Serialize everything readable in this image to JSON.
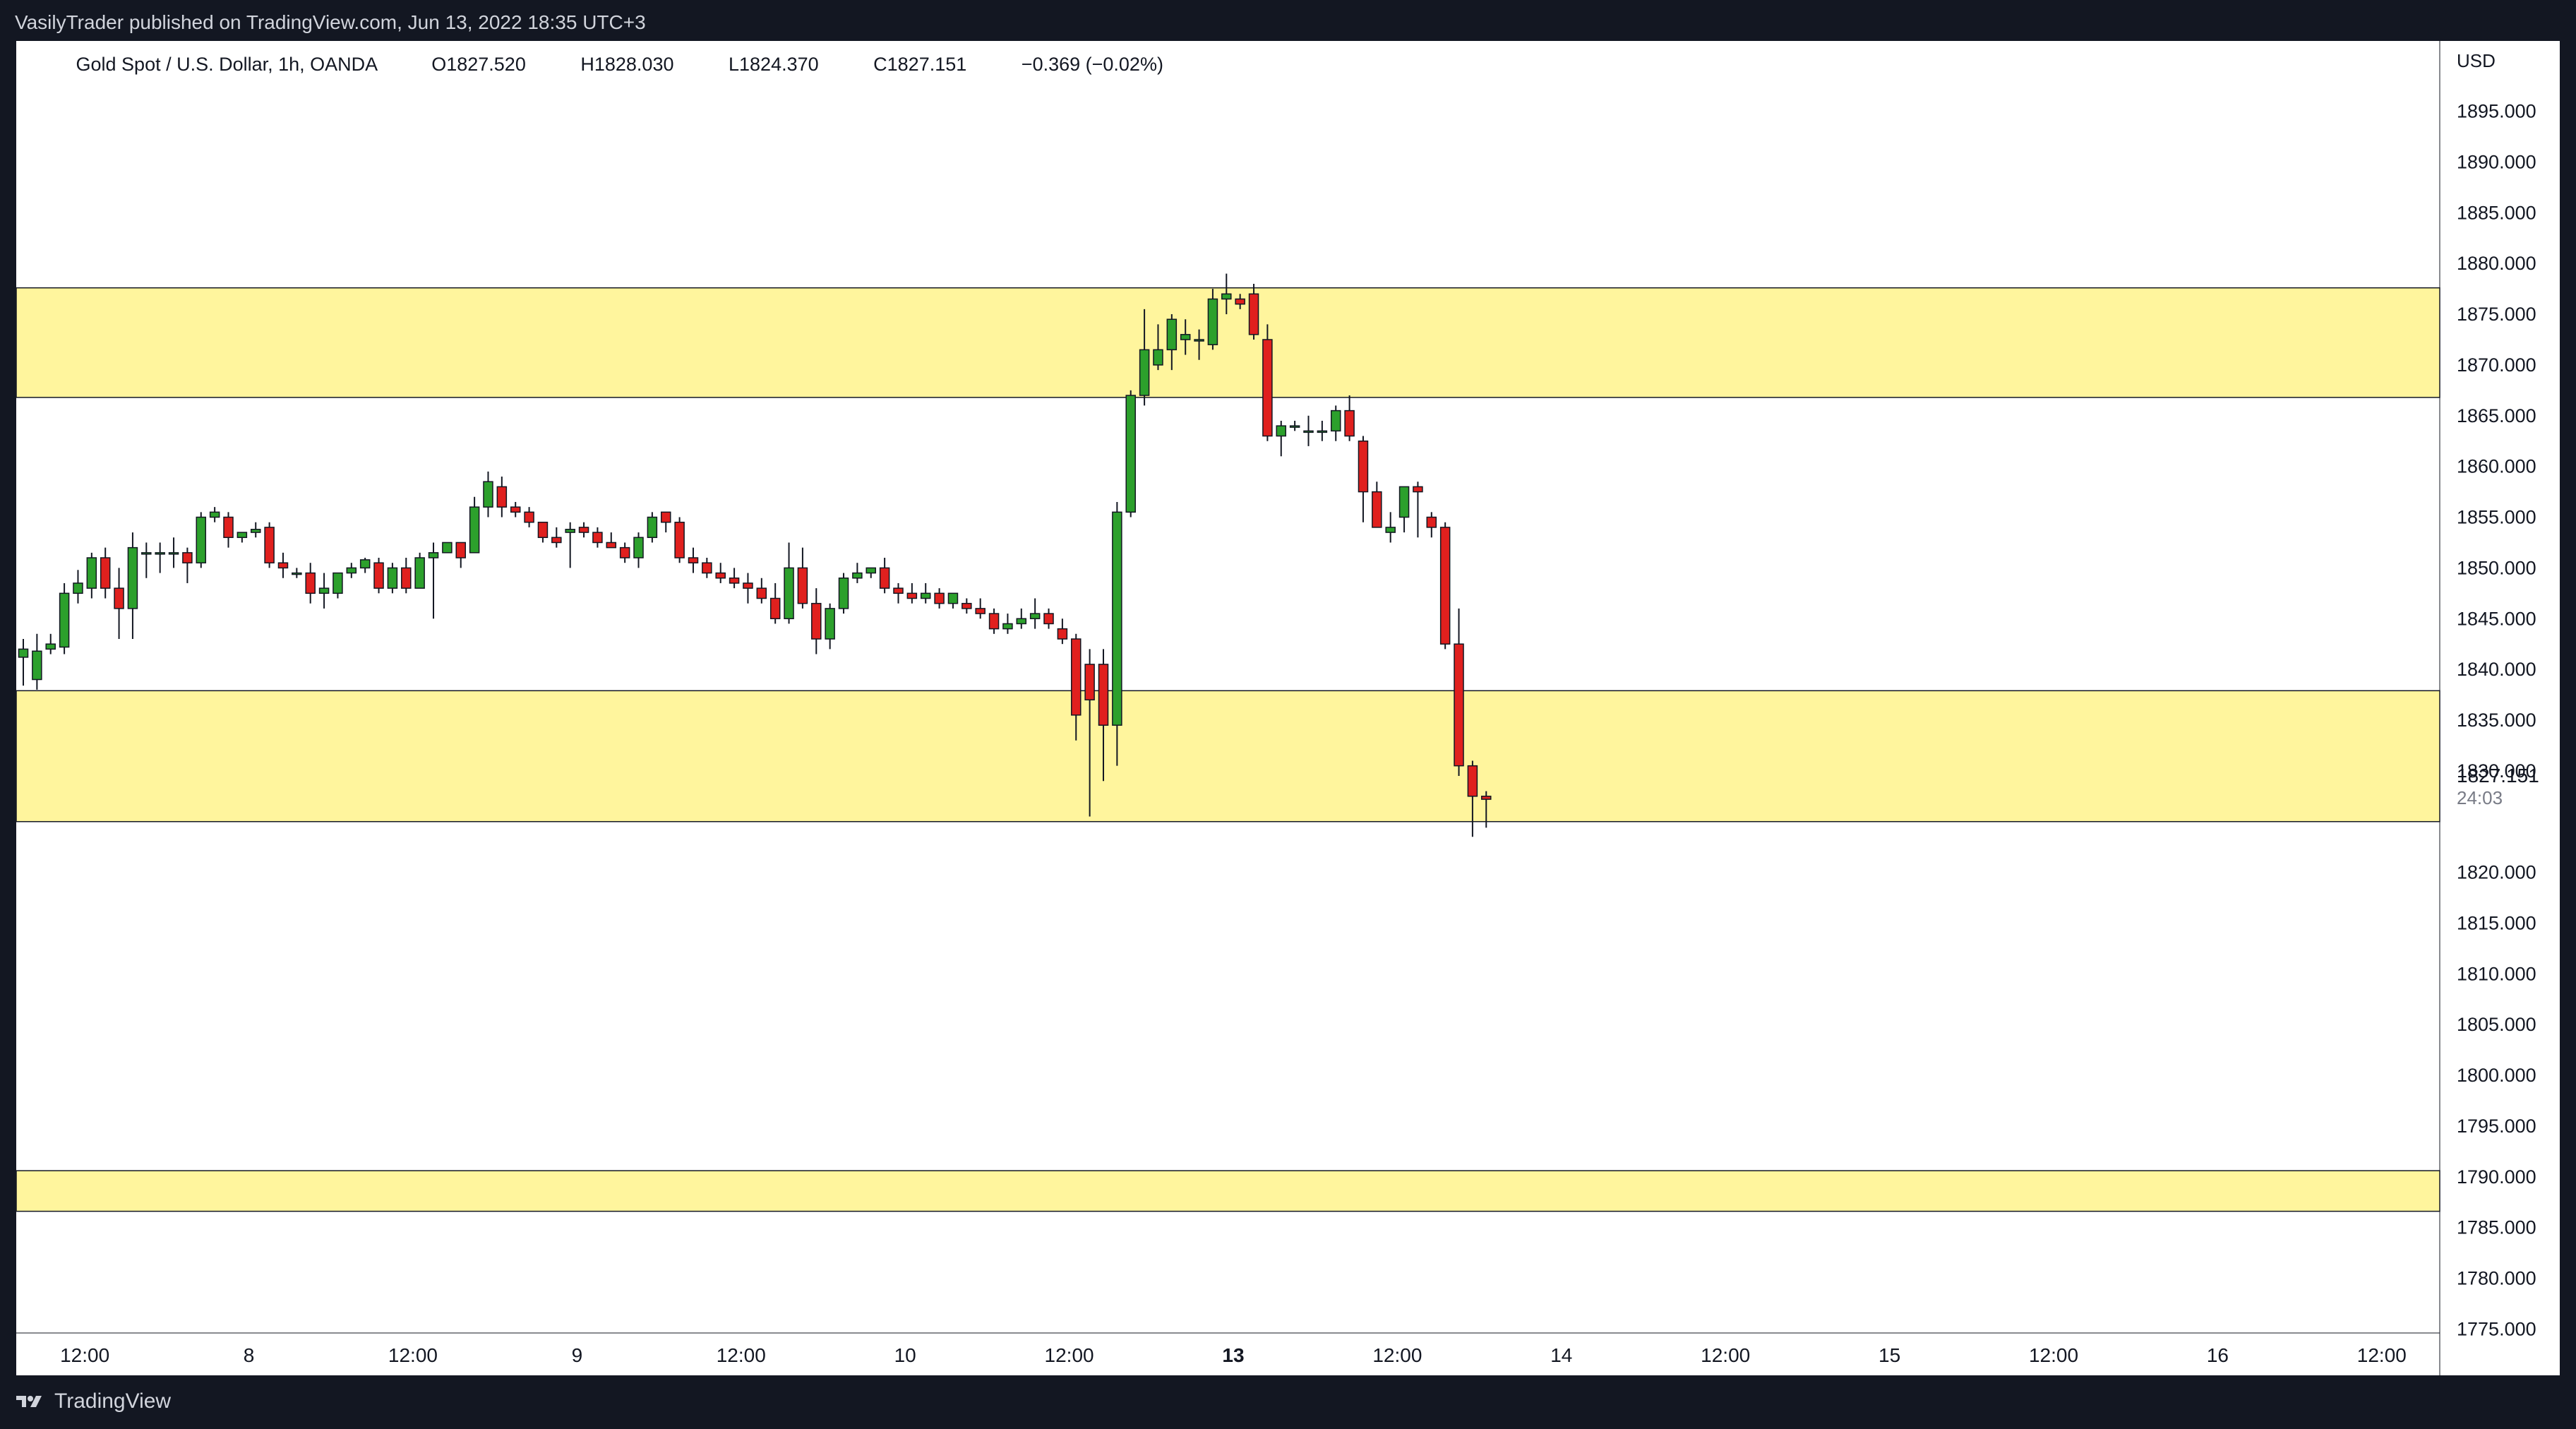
{
  "header": {
    "published": "VasilyTrader published on TradingView.com, Jun 13, 2022 18:35 UTC+3"
  },
  "legend": {
    "symbol": "Gold Spot / U.S. Dollar, 1h, OANDA",
    "open": "O1827.520",
    "high": "H1828.030",
    "low": "L1824.370",
    "close": "C1827.151",
    "change": "−0.369 (−0.02%)"
  },
  "footer": {
    "brand": "TradingView"
  },
  "colors": {
    "up": "#2ca02c",
    "down": "#e0201e",
    "zone": "#fff59d",
    "frame": "#131722",
    "chart_bg": "#ffffff"
  },
  "chart_data": {
    "type": "candlestick",
    "symbol": "XAUUSD",
    "timeframe": "1h",
    "currency_label": "USD",
    "last_price_label": "1827.151",
    "countdown_label": "24:03",
    "ylim": [
      1772.5,
      1897.5
    ],
    "y_ticks": [
      "1895.000",
      "1890.000",
      "1885.000",
      "1880.000",
      "1875.000",
      "1870.000",
      "1865.000",
      "1860.000",
      "1855.000",
      "1850.000",
      "1845.000",
      "1840.000",
      "1835.000",
      "1830.000",
      "1820.000",
      "1815.000",
      "1810.000",
      "1805.000",
      "1800.000",
      "1795.000",
      "1790.000",
      "1785.000",
      "1780.000",
      "1775.000"
    ],
    "x_ticks": [
      {
        "label": "12:00",
        "bar": 4.5,
        "bold": false
      },
      {
        "label": "8",
        "bar": 16.5,
        "bold": false
      },
      {
        "label": "12:00",
        "bar": 28.5,
        "bold": false
      },
      {
        "label": "9",
        "bar": 40.5,
        "bold": false
      },
      {
        "label": "12:00",
        "bar": 52.5,
        "bold": false
      },
      {
        "label": "10",
        "bar": 64.5,
        "bold": false
      },
      {
        "label": "12:00",
        "bar": 76.5,
        "bold": false
      },
      {
        "label": "13",
        "bar": 88.5,
        "bold": true
      },
      {
        "label": "12:00",
        "bar": 100.5,
        "bold": false
      },
      {
        "label": "14",
        "bar": 112.5,
        "bold": false
      },
      {
        "label": "12:00",
        "bar": 124.5,
        "bold": false
      },
      {
        "label": "15",
        "bar": 136.5,
        "bold": false
      },
      {
        "label": "12:00",
        "bar": 148.5,
        "bold": false
      },
      {
        "label": "16",
        "bar": 160.5,
        "bold": false
      },
      {
        "label": "12:00",
        "bar": 172.5,
        "bold": false
      }
    ],
    "zones": [
      {
        "top": 1877.6,
        "bottom": 1866.8
      },
      {
        "top": 1837.9,
        "bottom": 1825.0
      },
      {
        "top": 1790.6,
        "bottom": 1786.6
      }
    ],
    "candles": [
      [
        1841.2,
        1843.0,
        1838.4,
        1842.0
      ],
      [
        1839.0,
        1843.5,
        1838.0,
        1841.8
      ],
      [
        1842.0,
        1843.5,
        1841.5,
        1842.5
      ],
      [
        1842.2,
        1848.5,
        1841.5,
        1847.5
      ],
      [
        1847.5,
        1849.8,
        1846.5,
        1848.5
      ],
      [
        1848.0,
        1851.5,
        1847.0,
        1851.0
      ],
      [
        1851.0,
        1852.0,
        1847.0,
        1848.0
      ],
      [
        1848.0,
        1850.0,
        1843.0,
        1846.0
      ],
      [
        1846.0,
        1853.5,
        1843.0,
        1852.0
      ],
      [
        1851.5,
        1852.5,
        1849.0,
        1851.5
      ],
      [
        1851.5,
        1852.5,
        1849.5,
        1851.5
      ],
      [
        1851.5,
        1853.0,
        1850.0,
        1851.5
      ],
      [
        1851.5,
        1852.0,
        1848.5,
        1850.5
      ],
      [
        1850.5,
        1855.5,
        1850.0,
        1855.0
      ],
      [
        1855.0,
        1856.0,
        1854.5,
        1855.5
      ],
      [
        1855.0,
        1855.5,
        1852.0,
        1853.0
      ],
      [
        1853.0,
        1853.5,
        1852.5,
        1853.5
      ],
      [
        1853.5,
        1854.5,
        1853.0,
        1853.8
      ],
      [
        1854.0,
        1854.5,
        1850.0,
        1850.5
      ],
      [
        1850.5,
        1851.5,
        1849.0,
        1850.0
      ],
      [
        1849.5,
        1850.0,
        1849.0,
        1849.5
      ],
      [
        1849.5,
        1850.5,
        1846.5,
        1847.5
      ],
      [
        1847.5,
        1849.5,
        1846.0,
        1848.0
      ],
      [
        1847.5,
        1849.5,
        1847.0,
        1849.5
      ],
      [
        1849.5,
        1850.5,
        1849.0,
        1850.0
      ],
      [
        1850.0,
        1851.0,
        1849.5,
        1850.8
      ],
      [
        1850.5,
        1851.0,
        1847.5,
        1848.0
      ],
      [
        1848.0,
        1850.5,
        1847.5,
        1850.0
      ],
      [
        1850.0,
        1851.0,
        1847.5,
        1848.0
      ],
      [
        1848.0,
        1851.5,
        1848.0,
        1851.0
      ],
      [
        1851.0,
        1852.5,
        1845.0,
        1851.5
      ],
      [
        1851.5,
        1852.5,
        1852.0,
        1852.5
      ],
      [
        1852.5,
        1852.0,
        1850.0,
        1851.0
      ],
      [
        1851.5,
        1857.0,
        1852.0,
        1856.0
      ],
      [
        1856.0,
        1859.5,
        1855.0,
        1858.5
      ],
      [
        1858.0,
        1859.0,
        1855.0,
        1856.0
      ],
      [
        1856.0,
        1856.5,
        1855.0,
        1855.5
      ],
      [
        1855.5,
        1856.0,
        1854.0,
        1854.5
      ],
      [
        1854.5,
        1854.5,
        1852.5,
        1853.0
      ],
      [
        1853.0,
        1854.0,
        1852.0,
        1852.5
      ],
      [
        1853.5,
        1854.5,
        1850.0,
        1853.8
      ],
      [
        1854.0,
        1854.5,
        1853.0,
        1853.5
      ],
      [
        1853.5,
        1854.0,
        1852.0,
        1852.5
      ],
      [
        1852.5,
        1853.5,
        1852.0,
        1852.0
      ],
      [
        1852.0,
        1852.5,
        1850.5,
        1851.0
      ],
      [
        1851.0,
        1853.5,
        1850.0,
        1853.0
      ],
      [
        1853.0,
        1855.5,
        1852.5,
        1855.0
      ],
      [
        1855.5,
        1855.5,
        1853.5,
        1854.5
      ],
      [
        1854.5,
        1855.0,
        1850.5,
        1851.0
      ],
      [
        1851.0,
        1852.0,
        1849.5,
        1850.5
      ],
      [
        1850.5,
        1851.0,
        1849.0,
        1849.5
      ],
      [
        1849.5,
        1850.5,
        1848.5,
        1849.0
      ],
      [
        1849.0,
        1850.0,
        1848.0,
        1848.5
      ],
      [
        1848.5,
        1849.5,
        1846.5,
        1848.0
      ],
      [
        1848.0,
        1849.0,
        1846.5,
        1847.0
      ],
      [
        1847.0,
        1848.5,
        1844.5,
        1845.0
      ],
      [
        1845.0,
        1852.5,
        1844.5,
        1850.0
      ],
      [
        1850.0,
        1852.0,
        1846.0,
        1846.5
      ],
      [
        1846.5,
        1848.0,
        1841.5,
        1843.0
      ],
      [
        1843.0,
        1846.5,
        1842.0,
        1846.0
      ],
      [
        1846.0,
        1849.5,
        1845.5,
        1849.0
      ],
      [
        1849.0,
        1850.5,
        1848.5,
        1849.5
      ],
      [
        1849.5,
        1850.0,
        1849.0,
        1850.0
      ],
      [
        1850.0,
        1851.0,
        1847.5,
        1848.0
      ],
      [
        1848.0,
        1848.5,
        1846.5,
        1847.5
      ],
      [
        1847.5,
        1848.5,
        1846.5,
        1847.0
      ],
      [
        1847.0,
        1848.5,
        1846.5,
        1847.5
      ],
      [
        1847.5,
        1848.0,
        1846.0,
        1846.5
      ],
      [
        1846.5,
        1847.5,
        1846.0,
        1847.5
      ],
      [
        1846.5,
        1847.0,
        1845.5,
        1846.0
      ],
      [
        1846.0,
        1847.0,
        1845.0,
        1845.5
      ],
      [
        1845.5,
        1846.0,
        1843.5,
        1844.0
      ],
      [
        1844.0,
        1845.5,
        1843.5,
        1844.5
      ],
      [
        1844.5,
        1846.0,
        1844.0,
        1845.0
      ],
      [
        1845.0,
        1847.0,
        1844.0,
        1845.5
      ],
      [
        1845.5,
        1846.0,
        1844.0,
        1844.5
      ],
      [
        1844.0,
        1845.0,
        1842.5,
        1843.0
      ],
      [
        1843.0,
        1843.5,
        1833.0,
        1835.5
      ],
      [
        1840.5,
        1842.0,
        1825.5,
        1837.0
      ],
      [
        1840.5,
        1842.0,
        1829.0,
        1834.5
      ],
      [
        1834.5,
        1856.5,
        1830.5,
        1855.5
      ],
      [
        1855.5,
        1867.5,
        1855.0,
        1867.0
      ],
      [
        1867.0,
        1875.5,
        1866.0,
        1871.5
      ],
      [
        1870.0,
        1874.0,
        1869.5,
        1871.5
      ],
      [
        1871.5,
        1875.0,
        1869.5,
        1874.5
      ],
      [
        1872.5,
        1874.5,
        1871.0,
        1873.0
      ],
      [
        1872.5,
        1873.5,
        1870.5,
        1872.5
      ],
      [
        1872.0,
        1877.5,
        1871.5,
        1876.5
      ],
      [
        1876.5,
        1879.0,
        1875.0,
        1877.0
      ],
      [
        1876.5,
        1877.0,
        1875.5,
        1876.0
      ],
      [
        1877.0,
        1878.0,
        1872.5,
        1873.0
      ],
      [
        1872.5,
        1874.0,
        1862.5,
        1863.0
      ],
      [
        1863.0,
        1864.5,
        1861.0,
        1864.0
      ],
      [
        1864.0,
        1864.5,
        1863.5,
        1864.0
      ],
      [
        1863.5,
        1865.0,
        1862.0,
        1863.5
      ],
      [
        1863.5,
        1864.5,
        1862.5,
        1863.5
      ],
      [
        1863.5,
        1866.0,
        1862.5,
        1865.5
      ],
      [
        1865.5,
        1867.0,
        1862.5,
        1863.0
      ],
      [
        1862.5,
        1863.0,
        1854.5,
        1857.5
      ],
      [
        1857.5,
        1858.5,
        1854.0,
        1854.0
      ],
      [
        1853.5,
        1855.5,
        1852.5,
        1854.0
      ],
      [
        1855.0,
        1857.5,
        1853.5,
        1858.0
      ],
      [
        1858.0,
        1858.5,
        1853.0,
        1857.5
      ],
      [
        1855.0,
        1855.5,
        1853.0,
        1854.0
      ],
      [
        1854.0,
        1854.5,
        1842.0,
        1842.5
      ],
      [
        1842.5,
        1846.0,
        1829.5,
        1830.5
      ],
      [
        1830.5,
        1831.0,
        1823.5,
        1827.5
      ],
      [
        1827.5,
        1828.0,
        1824.4,
        1827.2
      ]
    ]
  }
}
